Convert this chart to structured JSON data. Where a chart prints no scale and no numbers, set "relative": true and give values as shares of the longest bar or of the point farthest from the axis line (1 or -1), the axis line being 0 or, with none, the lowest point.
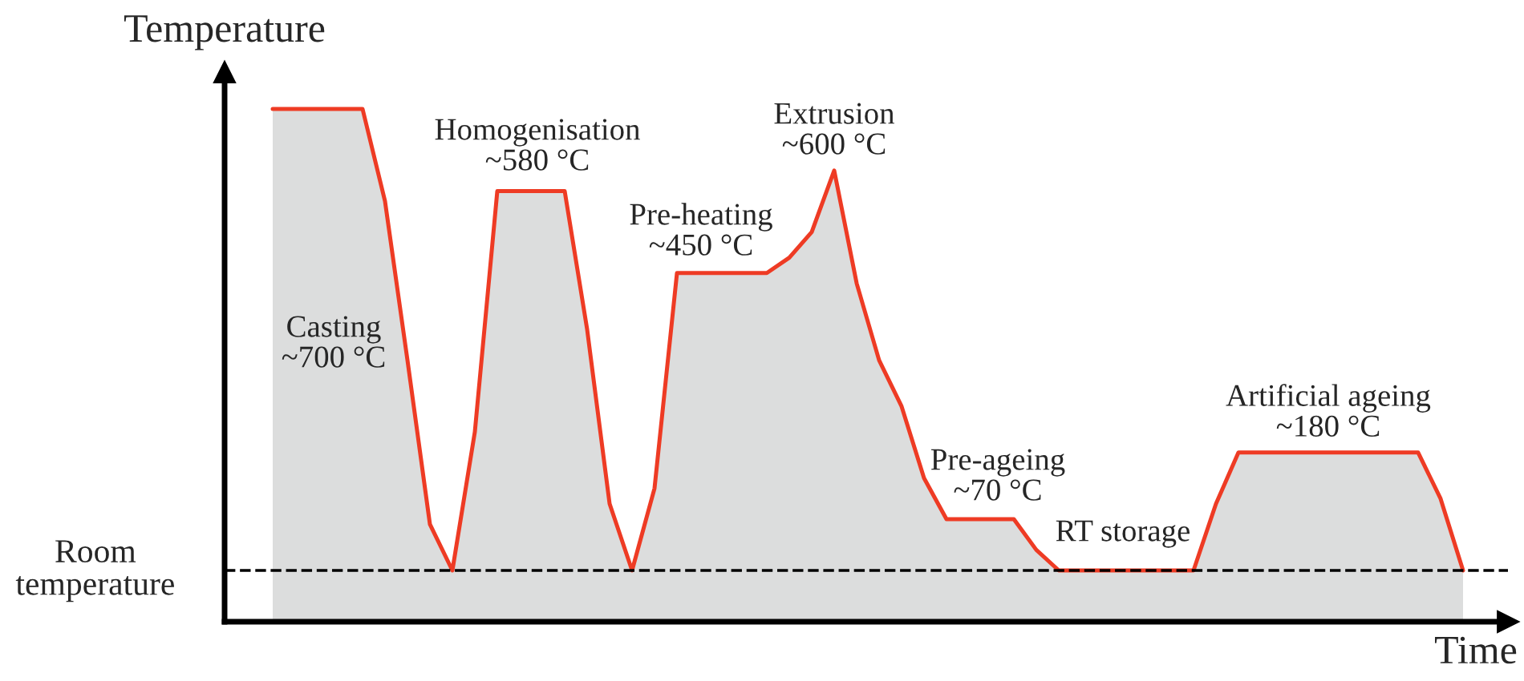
{
  "chart_data": {
    "type": "area",
    "relative": true,
    "xlabel": "Time",
    "ylabel": "Temperature",
    "categories": [
      null,
      null,
      null,
      null,
      null,
      null,
      null,
      null,
      null,
      null,
      null,
      null,
      null,
      null,
      null,
      null,
      null,
      null,
      null,
      null,
      null,
      null,
      null,
      null,
      null,
      null,
      null,
      null,
      null,
      null,
      null,
      null,
      null,
      null,
      null,
      null,
      null,
      null,
      null,
      null,
      null,
      null,
      null,
      null,
      null,
      null,
      null,
      null,
      null,
      null,
      null,
      null,
      null,
      null
    ],
    "series": [
      {
        "color": "#ee3b24",
        "values": [
          1,
          1,
          1,
          1,
          1,
          0.82,
          0.51,
          0.19,
          0.1,
          0.37,
          0.84,
          0.84,
          0.84,
          0.84,
          0.57,
          0.23,
          0.1,
          0.26,
          0.68,
          0.68,
          0.68,
          0.68,
          0.68,
          0.71,
          0.76,
          0.88,
          0.66,
          0.51,
          0.42,
          0.28,
          0.2,
          0.2,
          0.2,
          0.2,
          0.14,
          0.1,
          0.1,
          0.1,
          0.1,
          0.1,
          0.1,
          0.1,
          0.23,
          0.33,
          0.33,
          0.33,
          0.33,
          0.33,
          0.33,
          0.33,
          0.33,
          0.33,
          0.24,
          0.1
        ]
      }
    ],
    "ref_lines": [
      {
        "axis": "y",
        "value": 0.1,
        "label": "Room\ntemperature",
        "color": "#000000",
        "line_style": "dashed"
      }
    ],
    "annotations": [
      "Casting\n~700 °C",
      "Homogenisation\n~580 °C",
      "Pre-heating\n~450 °C",
      "Extrusion\n~600 °C",
      "Pre-ageing\n~70 °C",
      "RT storage",
      "Artificial ageing\n~180 °C"
    ]
  }
}
